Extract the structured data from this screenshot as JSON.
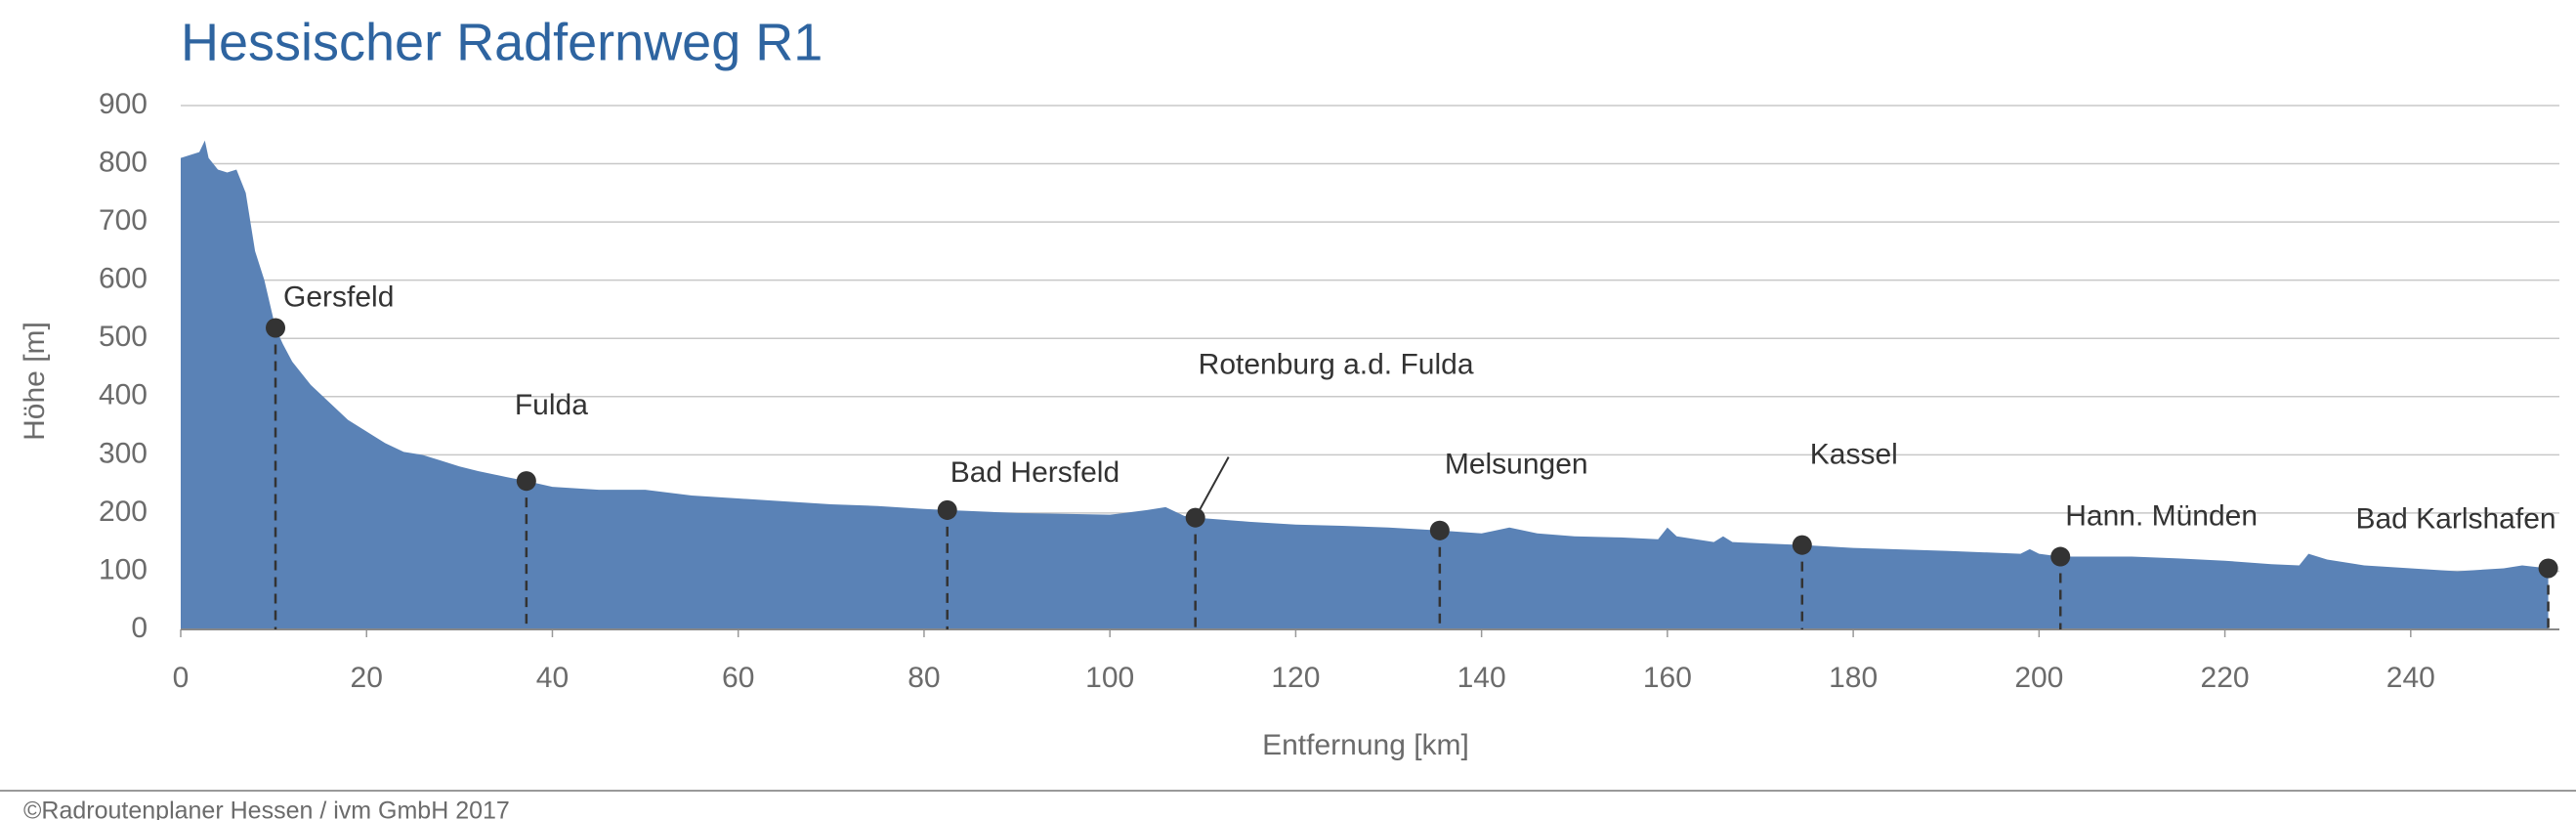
{
  "chart_data": {
    "type": "area",
    "title": "Hessischer Radfernweg R1",
    "xlabel": "Entfernung [km]",
    "ylabel": "Höhe [m]",
    "footer": "©Radroutenplaner Hessen / ivm GmbH 2017",
    "color": "#5a82b6",
    "grid": true,
    "xlim": [
      0,
      256
    ],
    "ylim": [
      0,
      900
    ],
    "xticks": [
      0,
      20,
      40,
      60,
      80,
      100,
      120,
      140,
      160,
      180,
      200,
      220,
      240
    ],
    "yticks": [
      0,
      100,
      200,
      300,
      400,
      500,
      600,
      700,
      800,
      900
    ],
    "x": [
      0,
      1,
      2,
      2.6,
      3,
      4,
      5,
      6,
      7,
      7.5,
      8,
      9,
      10.2,
      11,
      12,
      14,
      16,
      18,
      20,
      22,
      24,
      26,
      28,
      30,
      32,
      35,
      37.2,
      40,
      45,
      50,
      55,
      60,
      65,
      70,
      75,
      80,
      82.5,
      90,
      100,
      104,
      106,
      108,
      109.2,
      115,
      120,
      125,
      130,
      135.5,
      140,
      143,
      146,
      150,
      155,
      159,
      160,
      161,
      165,
      166,
      167,
      170,
      174.5,
      180,
      190,
      198,
      199,
      200,
      202.3,
      210,
      215,
      220,
      225,
      228,
      229,
      231,
      235,
      240,
      245,
      250,
      252,
      254.8
    ],
    "values": [
      810,
      815,
      820,
      840,
      810,
      790,
      785,
      790,
      750,
      700,
      650,
      600,
      518,
      490,
      460,
      420,
      390,
      360,
      340,
      320,
      305,
      300,
      290,
      280,
      272,
      262,
      255,
      245,
      240,
      240,
      230,
      225,
      220,
      215,
      212,
      207,
      205,
      200,
      197,
      205,
      210,
      195,
      192,
      185,
      180,
      178,
      175,
      170,
      165,
      175,
      165,
      160,
      158,
      155,
      175,
      160,
      150,
      160,
      150,
      148,
      145,
      140,
      135,
      130,
      138,
      130,
      125,
      125,
      122,
      118,
      112,
      110,
      130,
      120,
      110,
      105,
      100,
      105,
      110,
      105
    ],
    "places": [
      {
        "name": "Gersfeld",
        "x": 10.2,
        "elevation": 518
      },
      {
        "name": "Fulda",
        "x": 37.2,
        "elevation": 255
      },
      {
        "name": "Bad Hersfeld",
        "x": 82.5,
        "elevation": 205
      },
      {
        "name": "Rotenburg a.d. Fulda",
        "x": 109.2,
        "elevation": 192
      },
      {
        "name": "Melsungen",
        "x": 135.5,
        "elevation": 170
      },
      {
        "name": "Kassel",
        "x": 174.5,
        "elevation": 145
      },
      {
        "name": "Hann. Münden",
        "x": 202.3,
        "elevation": 125
      },
      {
        "name": "Bad Karlshafen",
        "x": 254.8,
        "elevation": 105
      }
    ]
  }
}
